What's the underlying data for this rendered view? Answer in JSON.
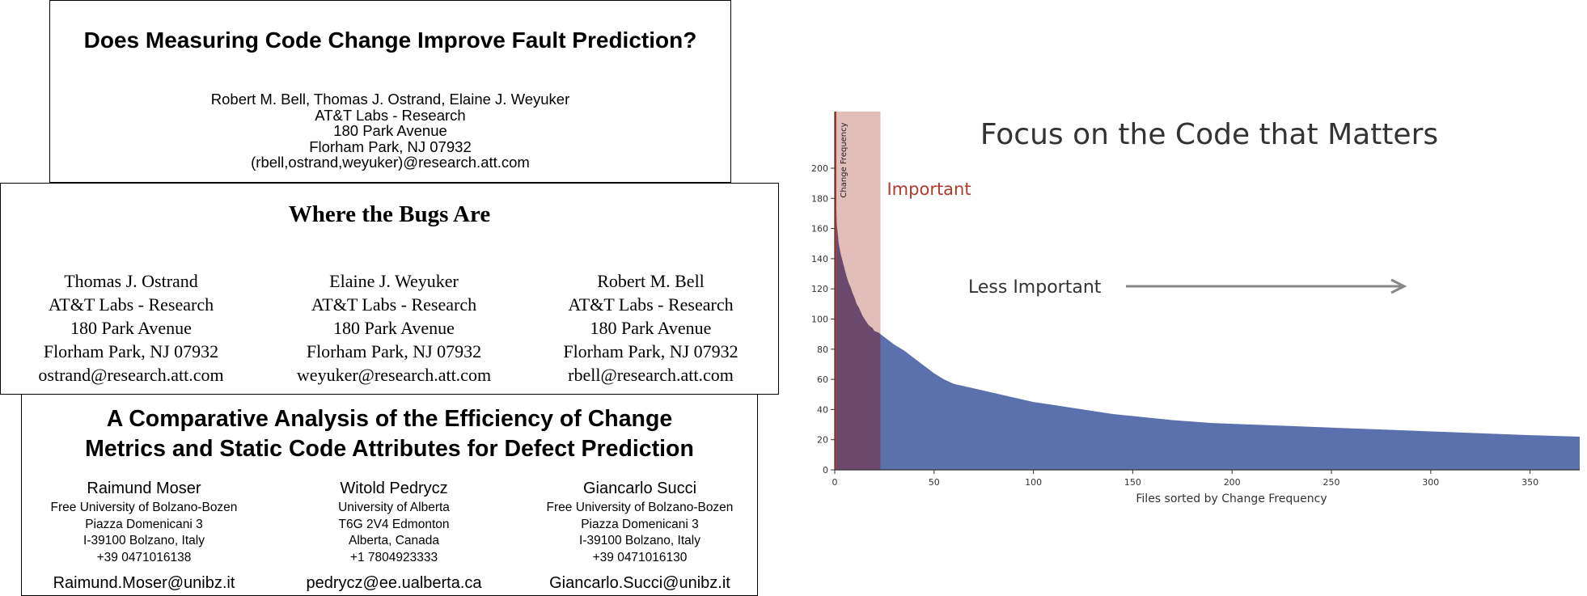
{
  "paper1": {
    "title": "Does Measuring Code Change Improve Fault Prediction?",
    "authors": "Robert M. Bell, Thomas J. Ostrand, Elaine J. Weyuker",
    "affiliation": "AT&T Labs - Research",
    "street": "180 Park Avenue",
    "city": "Florham Park, NJ 07932",
    "email": "(rbell,ostrand,weyuker)@research.att.com"
  },
  "paper2": {
    "title": "Where the Bugs Are",
    "authors": [
      {
        "name": "Thomas J. Ostrand",
        "affiliation": "AT&T Labs - Research",
        "street": "180 Park Avenue",
        "city": "Florham Park, NJ 07932",
        "email": "ostrand@research.att.com"
      },
      {
        "name": "Elaine J. Weyuker",
        "affiliation": "AT&T Labs - Research",
        "street": "180 Park Avenue",
        "city": "Florham Park, NJ 07932",
        "email": "weyuker@research.att.com"
      },
      {
        "name": "Robert M. Bell",
        "affiliation": "AT&T Labs - Research",
        "street": "180 Park Avenue",
        "city": "Florham Park, NJ 07932",
        "email": "rbell@research.att.com"
      }
    ]
  },
  "paper3": {
    "title_line1": "A Comparative Analysis of the Efficiency of Change",
    "title_line2": "Metrics and Static Code Attributes for Defect Prediction",
    "authors": [
      {
        "name": "Raimund Moser",
        "l1": "Free University of Bolzano-Bozen",
        "l2": "Piazza Domenicani 3",
        "l3": "I-39100 Bolzano, Italy",
        "l4": "+39 0471016138",
        "email": "Raimund.Moser@unibz.it"
      },
      {
        "name": "Witold Pedrycz",
        "l1": "University of Alberta",
        "l2": "T6G 2V4 Edmonton",
        "l3": "Alberta, Canada",
        "l4": "+1 7804923333",
        "email": "pedrycz@ee.ualberta.ca"
      },
      {
        "name": "Giancarlo Succi",
        "l1": "Free University of Bolzano-Bozen",
        "l2": "Piazza Domenicani 3",
        "l3": "I-39100 Bolzano, Italy",
        "l4": "+39 0471016130",
        "email": "Giancarlo.Succi@unibz.it"
      }
    ]
  },
  "chart_data": {
    "type": "area",
    "title": "Focus on the Code that Matters",
    "xlabel": "Files sorted by Change Frequency",
    "ylabel": "Change Frequency",
    "xlim": [
      0,
      375
    ],
    "ylim": [
      0,
      200
    ],
    "xticks": [
      0,
      50,
      100,
      150,
      200,
      250,
      300,
      350
    ],
    "yticks": [
      0,
      20,
      40,
      60,
      80,
      100,
      120,
      140,
      160,
      180,
      200
    ],
    "x": [
      0,
      1,
      2,
      3,
      4,
      5,
      6,
      7,
      8,
      9,
      10,
      11,
      12,
      13,
      14,
      15,
      16,
      17,
      18,
      19,
      20,
      22,
      24,
      26,
      28,
      30,
      35,
      40,
      45,
      50,
      55,
      60,
      70,
      80,
      90,
      100,
      110,
      125,
      140,
      155,
      170,
      190,
      210,
      230,
      250,
      270,
      290,
      310,
      330,
      350,
      375
    ],
    "values": [
      215,
      163,
      150,
      143,
      138,
      133,
      128,
      124,
      121,
      117,
      114,
      110,
      108,
      105,
      102,
      100,
      98,
      96,
      95,
      94,
      92,
      91,
      89,
      87,
      85,
      83,
      79,
      74,
      69,
      64,
      60,
      57,
      54,
      51,
      48,
      45,
      43,
      40,
      37,
      35,
      33,
      31,
      30,
      29,
      28,
      27,
      26,
      25,
      24,
      23,
      22
    ],
    "highlight": {
      "label": "Important",
      "x_range": [
        0,
        23
      ],
      "color": "#c0392b"
    },
    "annotation": "Less Important",
    "colors": {
      "area": "#5a71ad",
      "highlight_area": "#6b4a6e",
      "highlight_band": "#d9a7a3",
      "important_text": "#b03a2e"
    }
  }
}
